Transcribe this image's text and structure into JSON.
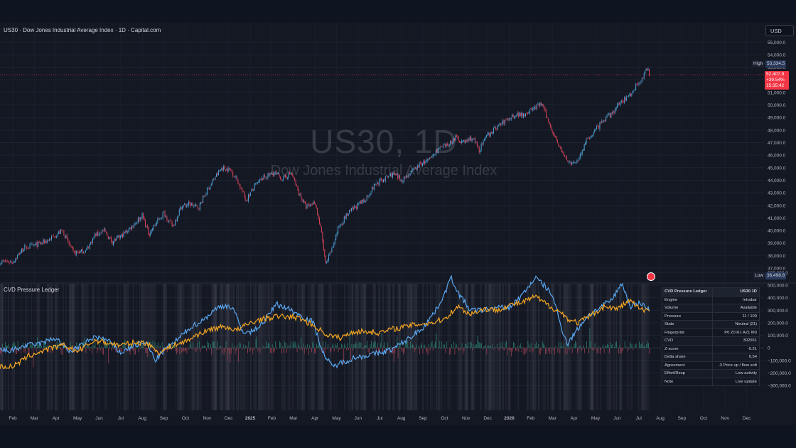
{
  "header": {
    "title": "US30 · Dow Jones Industrial Average Index · 1D · Capital.com",
    "currency_button": "USD"
  },
  "watermark": {
    "symbol": "US30, 1D",
    "name": "Dow Jones Industrial Average Index"
  },
  "price_tags": {
    "high_label": "High",
    "high_value": "53,334.5",
    "last_value": "52,407.9",
    "last_change": "+39.54%",
    "countdown": "15:35:42",
    "low_label": "Low",
    "low_value": "36,498.8",
    "colors": {
      "last": "#f23645",
      "high_low_bg": "#2a2e39"
    }
  },
  "indicator": {
    "pane_label": "CVD Pressure Ledger"
  },
  "ledger": {
    "title": "CVD Pressure Ledger",
    "symbol": "US30 1D",
    "rows": [
      {
        "label": "Engine",
        "value": "Intrabar"
      },
      {
        "label": "Volume",
        "value": "Available"
      },
      {
        "label": "Pressure",
        "value": "11 / 100"
      },
      {
        "label": "State",
        "value": "Neutral (21)"
      },
      {
        "label": "Fingerprint",
        "value": "P0 Z0 R1 A21 M0"
      },
      {
        "label": "CVD",
        "value": "302651"
      },
      {
        "label": "Z-score",
        "value": "-0.21"
      },
      {
        "label": "Delta share",
        "value": "0.54"
      },
      {
        "label": "Agreement",
        "value": "-3  Price up / flow soft"
      },
      {
        "label": "Effort/Resp",
        "value": "Low activity"
      },
      {
        "label": "Note",
        "value": "Live update"
      }
    ]
  },
  "chart_data": [
    {
      "type": "candlestick",
      "title": "US30 · Dow Jones Industrial Average Index · 1D · Capital.com",
      "ylim": [
        36000,
        55500
      ],
      "y_ticks": [
        37000,
        38000,
        39000,
        40000,
        41000,
        42000,
        43000,
        44000,
        45000,
        46000,
        47000,
        48000,
        49000,
        50000,
        51000,
        52000,
        53000,
        54000,
        55000
      ],
      "y_tick_labels": [
        "37,000.0",
        "38,000.0",
        "39,000.0",
        "40,000.0",
        "41,000.0",
        "42,000.0",
        "43,000.0",
        "44,000.0",
        "45,000.0",
        "46,000.0",
        "47,000.0",
        "48,000.0",
        "49,000.0",
        "50,000.0",
        "51,000.0",
        "52,000.0",
        "53,000.0",
        "54,000.0",
        "55,000.0"
      ],
      "x_ticks": [
        "Feb",
        "Mar",
        "Apr",
        "May",
        "Jun",
        "Jul",
        "Aug",
        "Sep",
        "Oct",
        "Nov",
        "Dec",
        "2025",
        "Feb",
        "Mar",
        "Apr",
        "May",
        "Jun",
        "Jul",
        "Aug",
        "Sep",
        "Oct",
        "Nov",
        "Dec",
        "2026",
        "Feb",
        "Mar",
        "Apr",
        "May",
        "Jun",
        "Jul",
        "Aug",
        "Sep",
        "Oct",
        "Nov",
        "Dec"
      ],
      "x_tick_pos": [
        0,
        1,
        2,
        3,
        4,
        5,
        6,
        7,
        8,
        9,
        10,
        11,
        12,
        13,
        14,
        15,
        16,
        17,
        18,
        19,
        20,
        21,
        22,
        23,
        24,
        25,
        26,
        27,
        28,
        29,
        30,
        31,
        32,
        33,
        34
      ],
      "last": 52407.9,
      "high": 53334.5,
      "low": 36498.8,
      "anchors": [
        [
          0,
          37500
        ],
        [
          0.5,
          38600
        ],
        [
          1.2,
          38900
        ],
        [
          1.7,
          39300
        ],
        [
          2.3,
          40000
        ],
        [
          2.8,
          38200
        ],
        [
          3.4,
          38400
        ],
        [
          3.8,
          39600
        ],
        [
          4.2,
          40000
        ],
        [
          4.6,
          39100
        ],
        [
          5.0,
          39500
        ],
        [
          5.5,
          40300
        ],
        [
          6.0,
          41200
        ],
        [
          6.3,
          39700
        ],
        [
          6.6,
          40500
        ],
        [
          7.0,
          41400
        ],
        [
          7.4,
          40300
        ],
        [
          7.8,
          41900
        ],
        [
          8.2,
          42100
        ],
        [
          8.6,
          41800
        ],
        [
          9.0,
          43200
        ],
        [
          9.4,
          44300
        ],
        [
          9.7,
          45000
        ],
        [
          10.1,
          44800
        ],
        [
          10.4,
          44000
        ],
        [
          10.8,
          42400
        ],
        [
          11.2,
          43500
        ],
        [
          11.6,
          44200
        ],
        [
          12.1,
          44600
        ],
        [
          12.5,
          44100
        ],
        [
          12.9,
          44600
        ],
        [
          13.2,
          43200
        ],
        [
          13.6,
          41800
        ],
        [
          14.0,
          42300
        ],
        [
          14.3,
          39800
        ],
        [
          14.5,
          37200
        ],
        [
          14.8,
          38600
        ],
        [
          15.1,
          40300
        ],
        [
          15.5,
          41300
        ],
        [
          15.9,
          41900
        ],
        [
          16.3,
          42400
        ],
        [
          16.8,
          43700
        ],
        [
          17.2,
          44100
        ],
        [
          17.6,
          44500
        ],
        [
          18.0,
          44000
        ],
        [
          18.5,
          44700
        ],
        [
          18.9,
          45300
        ],
        [
          19.3,
          45600
        ],
        [
          19.7,
          46500
        ],
        [
          20.1,
          46700
        ],
        [
          20.5,
          47400
        ],
        [
          20.9,
          47000
        ],
        [
          21.3,
          47400
        ],
        [
          21.6,
          46400
        ],
        [
          22.0,
          47600
        ],
        [
          22.4,
          48200
        ],
        [
          22.8,
          48700
        ],
        [
          23.2,
          49200
        ],
        [
          23.7,
          49300
        ],
        [
          24.1,
          49700
        ],
        [
          24.5,
          50100
        ],
        [
          24.8,
          48700
        ],
        [
          25.2,
          47200
        ],
        [
          25.5,
          46000
        ],
        [
          25.9,
          45200
        ],
        [
          26.2,
          45700
        ],
        [
          26.6,
          47200
        ],
        [
          27.0,
          48000
        ],
        [
          27.4,
          48800
        ],
        [
          27.8,
          49400
        ],
        [
          28.2,
          50300
        ],
        [
          28.6,
          50800
        ],
        [
          28.9,
          51600
        ],
        [
          29.2,
          52200
        ],
        [
          29.4,
          52900
        ],
        [
          29.5,
          52408
        ]
      ],
      "volume_profile_strips": true
    },
    {
      "type": "line",
      "title": "CVD Pressure Ledger",
      "ylim": [
        -350000,
        650000
      ],
      "y_ticks": [
        600000,
        500000,
        400000,
        300000,
        200000,
        100000,
        0,
        -100000,
        -200000,
        -300000
      ],
      "y_tick_labels": [
        "600,000.0",
        "500,000.0",
        "400,000.0",
        "300,000.0",
        "200,000.0",
        "100,000.0",
        "0",
        "−100,000.0",
        "−200,000.0",
        "−300,000.0"
      ],
      "series": [
        {
          "color": "#5aa7f0",
          "anchors": [
            [
              0,
              -20000
            ],
            [
              0.6,
              20000
            ],
            [
              1.2,
              30000
            ],
            [
              2.0,
              80000
            ],
            [
              2.6,
              -30000
            ],
            [
              3.2,
              20000
            ],
            [
              3.8,
              90000
            ],
            [
              4.4,
              60000
            ],
            [
              5.0,
              -40000
            ],
            [
              5.6,
              20000
            ],
            [
              6.2,
              40000
            ],
            [
              6.6,
              -100000
            ],
            [
              7.0,
              -20000
            ],
            [
              7.6,
              60000
            ],
            [
              8.2,
              160000
            ],
            [
              8.8,
              220000
            ],
            [
              9.4,
              310000
            ],
            [
              9.8,
              340000
            ],
            [
              10.2,
              320000
            ],
            [
              10.6,
              140000
            ],
            [
              11.0,
              120000
            ],
            [
              11.6,
              200000
            ],
            [
              12.2,
              350000
            ],
            [
              12.8,
              310000
            ],
            [
              13.4,
              250000
            ],
            [
              13.9,
              210000
            ],
            [
              14.4,
              -50000
            ],
            [
              14.8,
              -150000
            ],
            [
              15.2,
              -120000
            ],
            [
              15.8,
              -80000
            ],
            [
              16.4,
              -60000
            ],
            [
              17.0,
              -40000
            ],
            [
              17.6,
              -10000
            ],
            [
              18.4,
              80000
            ],
            [
              19.0,
              160000
            ],
            [
              19.6,
              300000
            ],
            [
              20.0,
              430000
            ],
            [
              20.3,
              560000
            ],
            [
              20.7,
              420000
            ],
            [
              21.2,
              300000
            ],
            [
              21.8,
              300000
            ],
            [
              22.4,
              320000
            ],
            [
              23.0,
              320000
            ],
            [
              23.6,
              420000
            ],
            [
              24.2,
              560000
            ],
            [
              24.6,
              500000
            ],
            [
              25.0,
              420000
            ],
            [
              25.4,
              170000
            ],
            [
              25.7,
              30000
            ],
            [
              26.0,
              110000
            ],
            [
              26.6,
              250000
            ],
            [
              27.2,
              320000
            ],
            [
              27.8,
              390000
            ],
            [
              28.2,
              520000
            ],
            [
              28.6,
              330000
            ],
            [
              29.1,
              360000
            ],
            [
              29.5,
              300000
            ]
          ]
        },
        {
          "color": "#f5a623",
          "anchors": [
            [
              0,
              -150000
            ],
            [
              0.8,
              -60000
            ],
            [
              1.6,
              -10000
            ],
            [
              2.4,
              20000
            ],
            [
              3.0,
              -30000
            ],
            [
              3.8,
              60000
            ],
            [
              4.4,
              40000
            ],
            [
              5.0,
              20000
            ],
            [
              5.6,
              40000
            ],
            [
              6.2,
              40000
            ],
            [
              6.8,
              -40000
            ],
            [
              7.4,
              20000
            ],
            [
              8.0,
              50000
            ],
            [
              8.6,
              110000
            ],
            [
              9.2,
              150000
            ],
            [
              9.8,
              170000
            ],
            [
              10.4,
              140000
            ],
            [
              11.0,
              200000
            ],
            [
              11.6,
              230000
            ],
            [
              12.2,
              250000
            ],
            [
              12.8,
              250000
            ],
            [
              13.4,
              230000
            ],
            [
              14.0,
              170000
            ],
            [
              14.6,
              100000
            ],
            [
              15.2,
              80000
            ],
            [
              15.8,
              130000
            ],
            [
              16.4,
              130000
            ],
            [
              17.0,
              120000
            ],
            [
              17.6,
              150000
            ],
            [
              18.2,
              170000
            ],
            [
              18.8,
              190000
            ],
            [
              19.4,
              200000
            ],
            [
              20.0,
              230000
            ],
            [
              20.6,
              330000
            ],
            [
              21.2,
              270000
            ],
            [
              21.8,
              310000
            ],
            [
              22.4,
              300000
            ],
            [
              23.0,
              340000
            ],
            [
              23.6,
              360000
            ],
            [
              24.2,
              410000
            ],
            [
              24.8,
              340000
            ],
            [
              25.4,
              280000
            ],
            [
              25.8,
              220000
            ],
            [
              26.2,
              200000
            ],
            [
              26.8,
              260000
            ],
            [
              27.4,
              330000
            ],
            [
              28.0,
              310000
            ],
            [
              28.6,
              380000
            ],
            [
              29.1,
              300000
            ],
            [
              29.5,
              302651
            ]
          ]
        }
      ],
      "volume_bars": true
    }
  ]
}
